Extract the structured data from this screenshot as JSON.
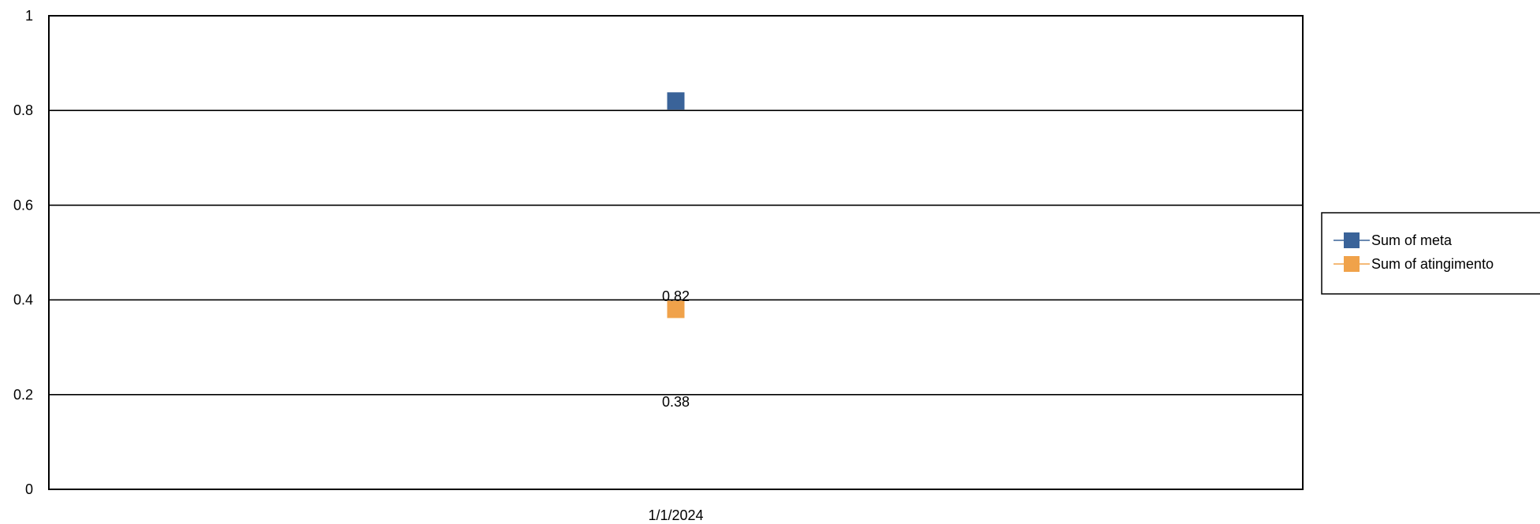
{
  "chart_data": {
    "type": "line",
    "x": [
      "1/1/2024"
    ],
    "series": [
      {
        "name": "Sum of meta",
        "values": [
          0.82
        ],
        "color": "#3a6399",
        "marker": "square"
      },
      {
        "name": "Sum of atingimento",
        "values": [
          0.38
        ],
        "color": "#f0a24a",
        "marker": "square"
      }
    ],
    "data_labels": [
      "0.82",
      "0.38"
    ],
    "ylim": [
      0,
      1
    ],
    "yticks": [
      "0",
      "0.2",
      "0.4",
      "0.6",
      "0.8",
      "1"
    ],
    "xlabel": "",
    "ylabel": "",
    "grid": true,
    "legend_position": "right"
  }
}
